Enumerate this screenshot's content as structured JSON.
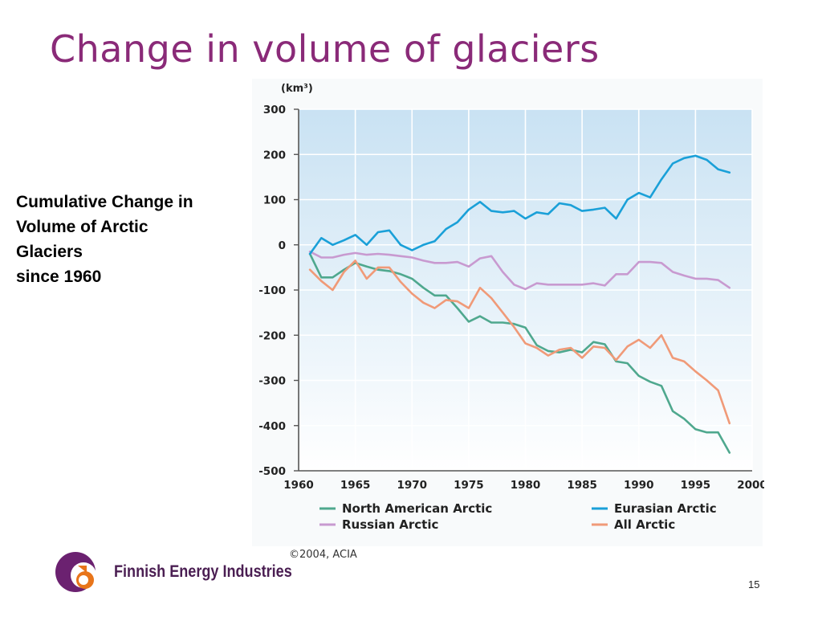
{
  "slide": {
    "title": "Change in volume of glaciers",
    "caption_lines": [
      "Cumulative Change in",
      "Volume of Arctic",
      "Glaciers",
      "since 1960"
    ],
    "page_number": "15",
    "logo_text": "Finnish Energy Industries",
    "colors": {
      "title": "#8a2a78",
      "logo_text": "#4a1e52",
      "logo_orange": "#e8751a"
    }
  },
  "chart_data": {
    "type": "line",
    "unit_label": "(km³)",
    "credit": "©2004, ACIA",
    "xlim": [
      1960,
      2000
    ],
    "ylim": [
      -500,
      300
    ],
    "x_ticks": [
      "1960",
      "1965",
      "1970",
      "1975",
      "1980",
      "1985",
      "1990",
      "1995",
      "2000"
    ],
    "y_ticks": [
      "300",
      "200",
      "100",
      "0",
      "-100",
      "-200",
      "-300",
      "-400",
      "-500"
    ],
    "grid": true,
    "legend_position": "bottom",
    "x": [
      1961,
      1962,
      1963,
      1964,
      1965,
      1966,
      1967,
      1968,
      1969,
      1970,
      1971,
      1972,
      1973,
      1974,
      1975,
      1976,
      1977,
      1978,
      1979,
      1980,
      1981,
      1982,
      1983,
      1984,
      1985,
      1986,
      1987,
      1988,
      1989,
      1990,
      1991,
      1992,
      1993,
      1994,
      1995,
      1996,
      1997,
      1998
    ],
    "series": [
      {
        "name": "North American Arctic",
        "color": "#4fa88e",
        "values": [
          -20,
          -72,
          -72,
          -55,
          -40,
          -48,
          -55,
          -58,
          -65,
          -75,
          -95,
          -112,
          -112,
          -140,
          -170,
          -158,
          -172,
          -172,
          -175,
          -183,
          -222,
          -235,
          -238,
          -232,
          -238,
          -215,
          -220,
          -258,
          -262,
          -290,
          -303,
          -312,
          -368,
          -385,
          -408,
          -415,
          -415,
          -460
        ]
      },
      {
        "name": "Eurasian Arctic",
        "color": "#1aa0d8",
        "values": [
          -20,
          15,
          0,
          10,
          22,
          0,
          28,
          32,
          0,
          -12,
          0,
          8,
          35,
          50,
          78,
          95,
          75,
          72,
          75,
          58,
          72,
          68,
          92,
          88,
          75,
          78,
          82,
          58,
          100,
          115,
          105,
          145,
          180,
          192,
          197,
          188,
          167,
          160
        ]
      },
      {
        "name": "Russian Arctic",
        "color": "#c89ad0",
        "values": [
          -15,
          -28,
          -28,
          -22,
          -18,
          -22,
          -20,
          -22,
          -25,
          -28,
          -35,
          -40,
          -40,
          -38,
          -48,
          -30,
          -25,
          -60,
          -88,
          -98,
          -85,
          -88,
          -88,
          -88,
          -88,
          -85,
          -90,
          -65,
          -65,
          -38,
          -38,
          -40,
          -60,
          -68,
          -75,
          -75,
          -78,
          -95
        ]
      },
      {
        "name": "All Arctic",
        "color": "#f09a78",
        "values": [
          -55,
          -80,
          -100,
          -60,
          -35,
          -75,
          -50,
          -50,
          -82,
          -108,
          -128,
          -140,
          -122,
          -125,
          -140,
          -95,
          -118,
          -150,
          -182,
          -218,
          -228,
          -245,
          -232,
          -228,
          -250,
          -225,
          -228,
          -255,
          -225,
          -210,
          -228,
          -200,
          -250,
          -258,
          -280,
          -300,
          -322,
          -395
        ]
      }
    ]
  }
}
